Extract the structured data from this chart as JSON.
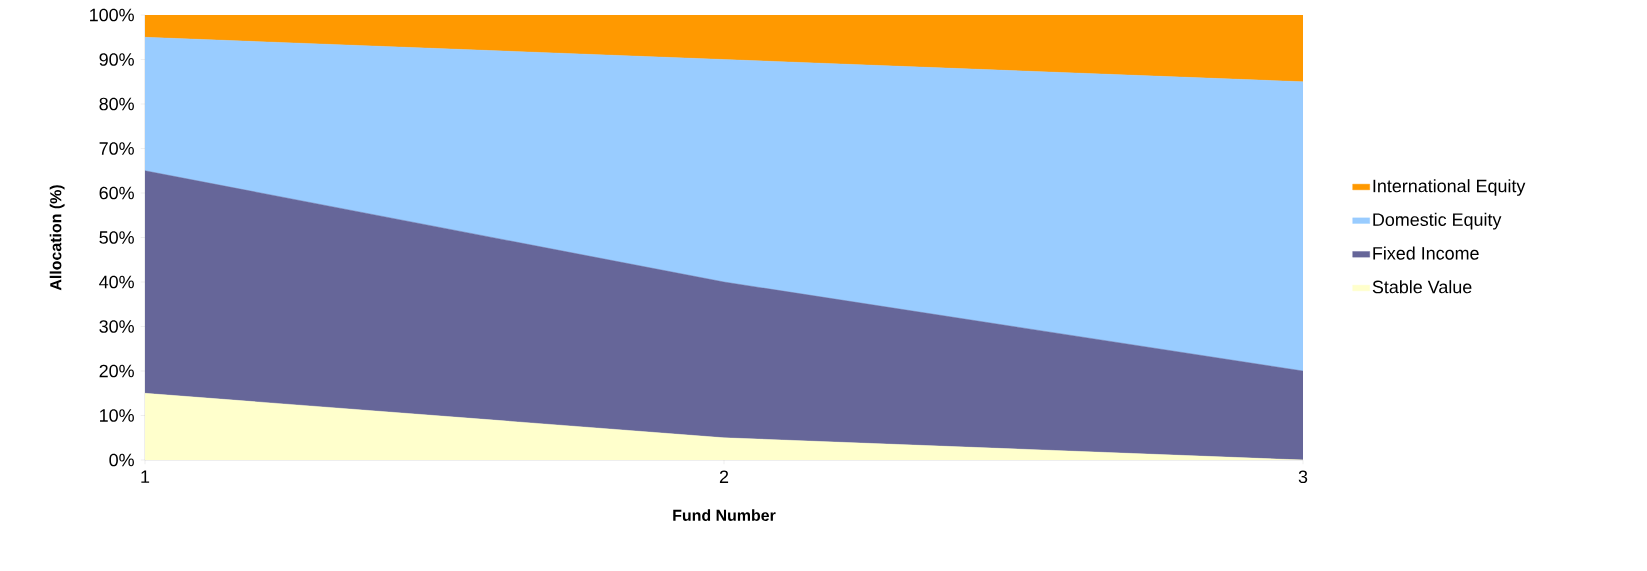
{
  "chart_data": {
    "type": "area",
    "stacked": true,
    "xlabel": "Fund Number",
    "ylabel": "Allocation (%)",
    "x": [
      1,
      2,
      3
    ],
    "xlim": [
      1,
      3
    ],
    "xticks": [
      1,
      2,
      3
    ],
    "ylim": [
      0,
      100
    ],
    "yticks": [
      {
        "value": 0,
        "label": "0%"
      },
      {
        "value": 10,
        "label": "10%"
      },
      {
        "value": 20,
        "label": "20%"
      },
      {
        "value": 30,
        "label": "30%"
      },
      {
        "value": 40,
        "label": "40%"
      },
      {
        "value": 50,
        "label": "50%"
      },
      {
        "value": 60,
        "label": "60%"
      },
      {
        "value": 70,
        "label": "70%"
      },
      {
        "value": 80,
        "label": "80%"
      },
      {
        "value": 90,
        "label": "90%"
      },
      {
        "value": 100,
        "label": "100%"
      }
    ],
    "legend": "right",
    "series": [
      {
        "name": "Stable Value",
        "color": "#ffffcc",
        "values": [
          15,
          5,
          0
        ]
      },
      {
        "name": "Fixed Income",
        "color": "#666699",
        "values": [
          50,
          35,
          20
        ]
      },
      {
        "name": "Domestic Equity",
        "color": "#99ccff",
        "values": [
          30,
          50,
          65
        ]
      },
      {
        "name": "International Equity",
        "color": "#ff9900",
        "values": [
          5,
          10,
          15
        ]
      }
    ]
  }
}
